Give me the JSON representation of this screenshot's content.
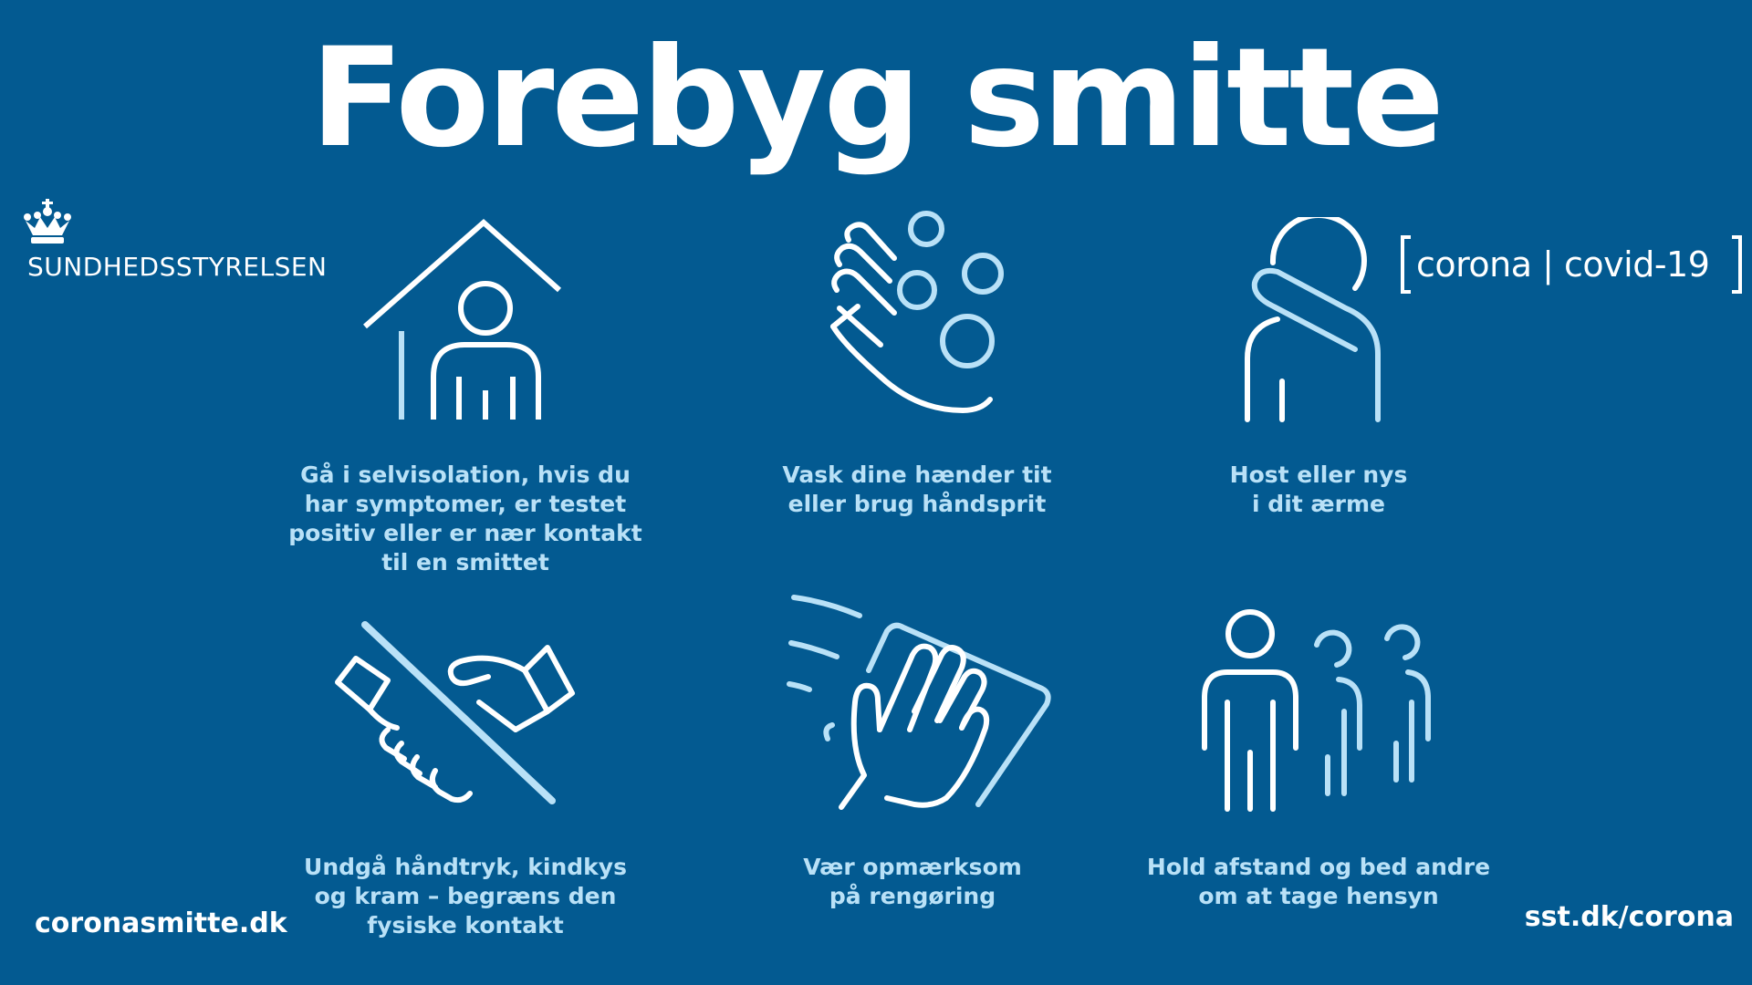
{
  "title": "Forebyg smitte",
  "logo_left": {
    "text": "SUNDHEDSSTYRELSEN",
    "icon": "crown-icon"
  },
  "logo_right": {
    "text": "corona | covid-19"
  },
  "colors": {
    "background": "#035a91",
    "white": "#ffffff",
    "light_blue": "#b9e1f7"
  },
  "tips": [
    {
      "icon": "person-at-home-icon",
      "lines": [
        "Gå i selvisolation, hvis du",
        "har symptomer, er testet",
        "positiv eller er nær kontakt",
        "til en smittet"
      ]
    },
    {
      "icon": "washing-hands-icon",
      "lines": [
        "Vask dine hænder tit",
        "eller brug håndsprit"
      ]
    },
    {
      "icon": "cough-in-sleeve-icon",
      "lines": [
        "Host eller nys",
        "i dit ærme"
      ]
    },
    {
      "icon": "no-handshake-icon",
      "lines": [
        "Undgå håndtryk, kindkys",
        "og kram – begræns den",
        "fysiske kontakt"
      ]
    },
    {
      "icon": "cleaning-surface-icon",
      "lines": [
        "Vær opmærksom",
        "på rengøring"
      ]
    },
    {
      "icon": "keep-distance-icon",
      "lines": [
        "Hold afstand og bed andre",
        "om at tage hensyn"
      ]
    }
  ],
  "footer": {
    "left": "coronasmitte.dk",
    "right": "sst.dk/corona"
  }
}
